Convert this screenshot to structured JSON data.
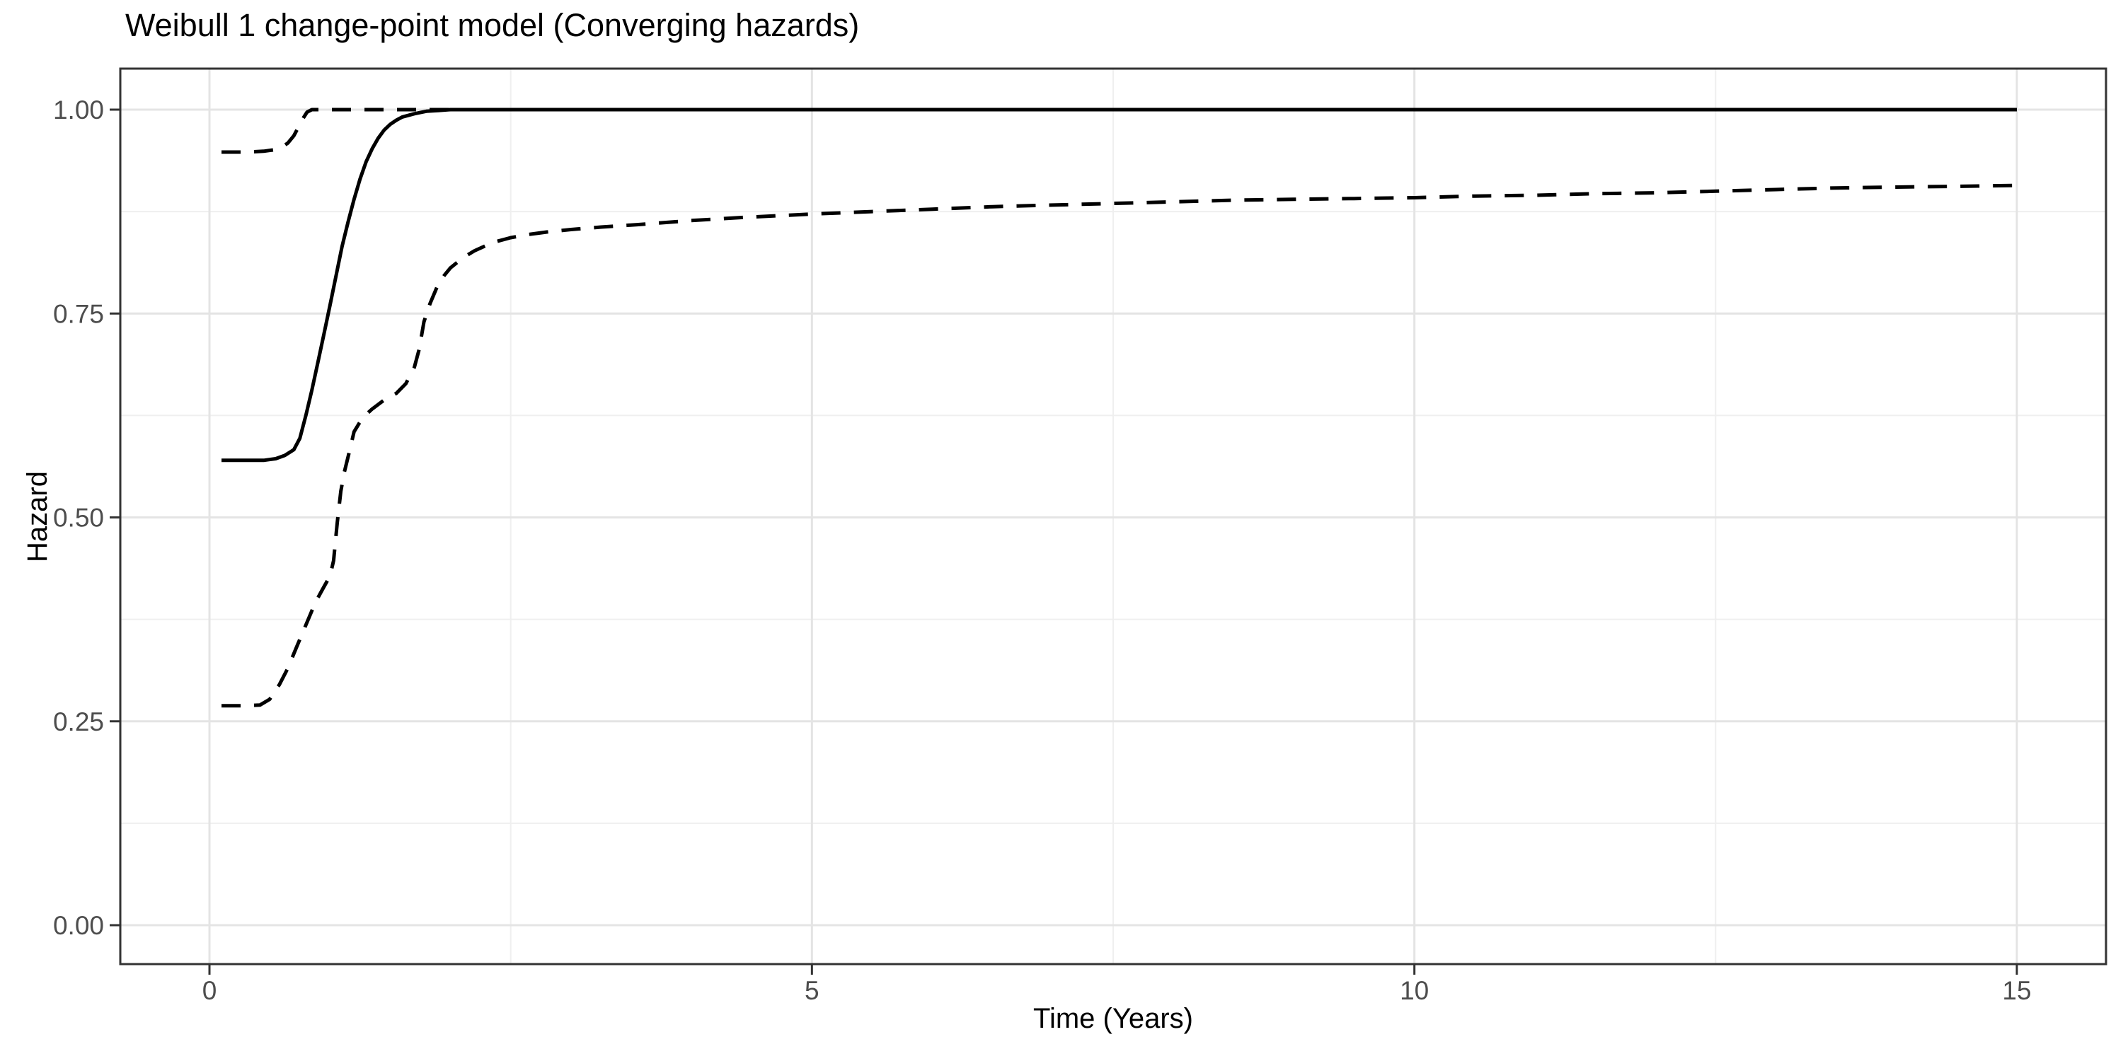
{
  "chart_data": {
    "type": "line",
    "title": "Weibull 1 change-point model (Converging hazards)",
    "xlabel": "Time (Years)",
    "ylabel": "Hazard",
    "xlim": [
      -0.74,
      15.74
    ],
    "ylim": [
      -0.048,
      1.05
    ],
    "grid": true,
    "legend": "none",
    "x_ticks": [
      {
        "v": 0,
        "label": "0"
      },
      {
        "v": 5,
        "label": "5"
      },
      {
        "v": 10,
        "label": "10"
      },
      {
        "v": 15,
        "label": "15"
      }
    ],
    "x_minor": [
      2.5,
      7.5,
      12.5
    ],
    "y_ticks": [
      {
        "v": 0.0,
        "label": "0.00"
      },
      {
        "v": 0.25,
        "label": "0.25"
      },
      {
        "v": 0.5,
        "label": "0.50"
      },
      {
        "v": 0.75,
        "label": "0.75"
      },
      {
        "v": 1.0,
        "label": "1.00"
      }
    ],
    "y_minor": [
      0.125,
      0.375,
      0.625,
      0.875
    ],
    "colors": {
      "line": "#000000",
      "grid_major": "#E4E4E4",
      "grid_minor": "#EFEFEF",
      "panel_border": "#333333",
      "tick": "#333333",
      "tick_label": "#4D4D4D"
    },
    "series": [
      {
        "name": "median-hazard",
        "style": "solid",
        "points": [
          [
            0.1,
            0.57
          ],
          [
            0.3,
            0.57
          ],
          [
            0.45,
            0.57
          ],
          [
            0.55,
            0.572
          ],
          [
            0.625,
            0.576
          ],
          [
            0.7,
            0.583
          ],
          [
            0.75,
            0.597
          ],
          [
            0.8,
            0.625
          ],
          [
            0.85,
            0.656
          ],
          [
            0.9,
            0.69
          ],
          [
            0.95,
            0.725
          ],
          [
            1.0,
            0.76
          ],
          [
            1.05,
            0.796
          ],
          [
            1.1,
            0.832
          ],
          [
            1.15,
            0.862
          ],
          [
            1.2,
            0.89
          ],
          [
            1.25,
            0.915
          ],
          [
            1.3,
            0.936
          ],
          [
            1.35,
            0.952
          ],
          [
            1.4,
            0.965
          ],
          [
            1.45,
            0.975
          ],
          [
            1.5,
            0.982
          ],
          [
            1.55,
            0.987
          ],
          [
            1.6,
            0.991
          ],
          [
            1.7,
            0.995
          ],
          [
            1.8,
            0.998
          ],
          [
            1.9,
            0.999
          ],
          [
            2.0,
            1.0
          ],
          [
            15,
            1.0
          ]
        ]
      },
      {
        "name": "upper-95ci",
        "style": "dashed",
        "points": [
          [
            0.1,
            0.948
          ],
          [
            0.3,
            0.948
          ],
          [
            0.45,
            0.949
          ],
          [
            0.55,
            0.951
          ],
          [
            0.6,
            0.954
          ],
          [
            0.65,
            0.959
          ],
          [
            0.7,
            0.968
          ],
          [
            0.74,
            0.979
          ],
          [
            0.78,
            0.99
          ],
          [
            0.81,
            0.997
          ],
          [
            0.85,
            1.0
          ],
          [
            15,
            1.0
          ]
        ]
      },
      {
        "name": "lower-95ci",
        "style": "dashed",
        "points": [
          [
            0.1,
            0.269
          ],
          [
            0.3,
            0.269
          ],
          [
            0.42,
            0.27
          ],
          [
            0.5,
            0.277
          ],
          [
            0.58,
            0.295
          ],
          [
            0.65,
            0.315
          ],
          [
            0.72,
            0.34
          ],
          [
            0.8,
            0.368
          ],
          [
            0.88,
            0.396
          ],
          [
            0.95,
            0.415
          ],
          [
            1.0,
            0.428
          ],
          [
            1.03,
            0.447
          ],
          [
            1.06,
            0.493
          ],
          [
            1.09,
            0.532
          ],
          [
            1.12,
            0.556
          ],
          [
            1.16,
            0.58
          ],
          [
            1.2,
            0.605
          ],
          [
            1.27,
            0.622
          ],
          [
            1.35,
            0.633
          ],
          [
            1.45,
            0.644
          ],
          [
            1.55,
            0.652
          ],
          [
            1.63,
            0.664
          ],
          [
            1.7,
            0.684
          ],
          [
            1.74,
            0.706
          ],
          [
            1.78,
            0.74
          ],
          [
            1.83,
            0.762
          ],
          [
            1.89,
            0.783
          ],
          [
            1.95,
            0.797
          ],
          [
            2.0,
            0.806
          ],
          [
            2.1,
            0.818
          ],
          [
            2.2,
            0.827
          ],
          [
            2.35,
            0.837
          ],
          [
            2.5,
            0.843
          ],
          [
            2.65,
            0.847
          ],
          [
            2.8,
            0.85
          ],
          [
            3.0,
            0.853
          ],
          [
            3.25,
            0.856
          ],
          [
            3.55,
            0.859
          ],
          [
            4.0,
            0.864
          ],
          [
            4.45,
            0.868
          ],
          [
            5.0,
            0.872
          ],
          [
            5.5,
            0.875
          ],
          [
            6.0,
            0.878
          ],
          [
            6.5,
            0.881
          ],
          [
            7.0,
            0.883
          ],
          [
            7.5,
            0.885
          ],
          [
            8.0,
            0.887
          ],
          [
            8.5,
            0.889
          ],
          [
            9.0,
            0.89
          ],
          [
            9.5,
            0.891
          ],
          [
            10.0,
            0.892
          ],
          [
            10.5,
            0.894
          ],
          [
            11.0,
            0.895
          ],
          [
            11.5,
            0.897
          ],
          [
            12.0,
            0.898
          ],
          [
            12.5,
            0.9
          ],
          [
            13.0,
            0.902
          ],
          [
            13.5,
            0.904
          ],
          [
            14.0,
            0.905
          ],
          [
            14.5,
            0.906
          ],
          [
            15.0,
            0.907
          ]
        ]
      }
    ]
  }
}
